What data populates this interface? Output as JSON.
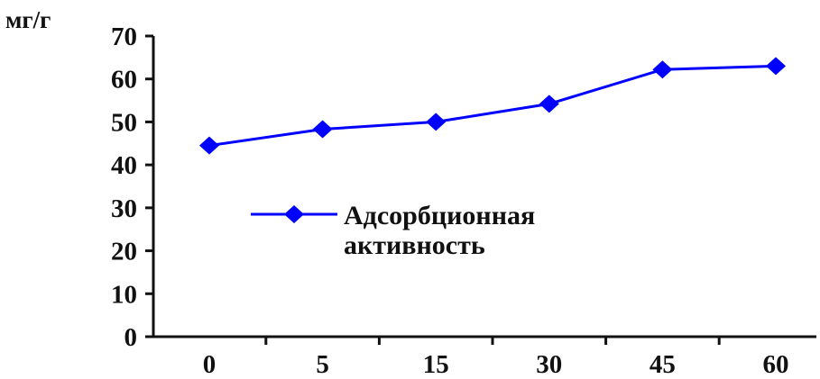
{
  "chart_data": {
    "type": "line",
    "title": "",
    "xlabel": "",
    "ylabel": "мг/г",
    "categories": [
      "0",
      "5",
      "15",
      "30",
      "45",
      "60"
    ],
    "ylim": [
      0,
      70
    ],
    "yticks": [
      0,
      10,
      20,
      30,
      40,
      50,
      60,
      70
    ],
    "grid": false,
    "legend": "inside-center",
    "series": [
      {
        "name": "Адсорбционная активность",
        "values": [
          44.5,
          48.3,
          50.0,
          54.2,
          62.2,
          63.0
        ],
        "color": "#0000ff",
        "marker": "diamond"
      }
    ]
  },
  "legend": {
    "line1": "Адсорбционная",
    "line2": "активность"
  }
}
